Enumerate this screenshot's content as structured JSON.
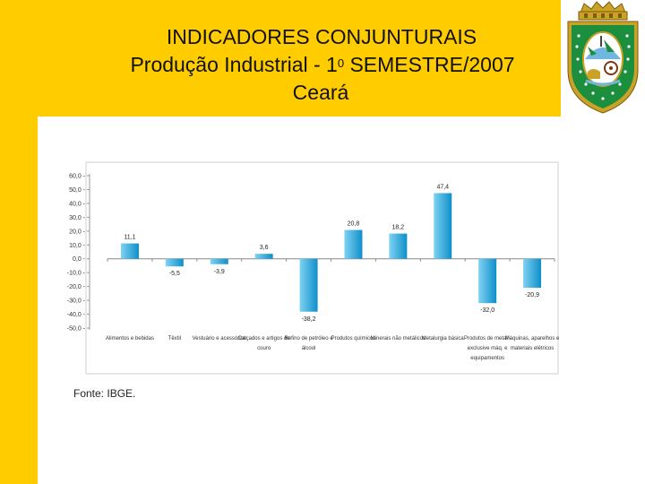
{
  "slide": {
    "title_line1": "INDICADORES CONJUNTURAIS",
    "title_line2_prefix": "Produção Industrial - 1",
    "title_line2_sup": "0",
    "title_line2_suffix": " SEMESTRE/2007",
    "title_line3": "Ceará",
    "source": "Fonte: IBGE."
  },
  "crest": {
    "name": "ceara-state-coat-of-arms",
    "colors": {
      "shield": "#1C8F3E",
      "gold": "#C9A227",
      "white": "#FFFFFF",
      "sky": "#6FB6E0"
    }
  },
  "colors": {
    "background": "#FFCC00",
    "panel": "#FFFFFF",
    "bar_dark": "#0E8FC9",
    "bar_light": "#7FD2F2"
  },
  "chart_data": {
    "type": "bar",
    "title": "",
    "xlabel": "",
    "ylabel": "",
    "ylim": [
      -50,
      60
    ],
    "yticks": [
      60,
      50,
      40,
      30,
      20,
      10,
      0,
      -10,
      -20,
      -30,
      -40,
      -50
    ],
    "ytick_labels": [
      "60,0",
      "50,0",
      "40,0",
      "30,0",
      "20,0",
      "10,0",
      "0,0",
      "-10,0",
      "-20,0",
      "-30,0",
      "-40,0",
      "-50,0"
    ],
    "categories": [
      [
        "Alimentos e bebidas"
      ],
      [
        "Têxtil"
      ],
      [
        "Vestuário e acessórios"
      ],
      [
        "Calçados e artigos de",
        "couro"
      ],
      [
        "Refino de petróleo e",
        "álcool"
      ],
      [
        "Produtos químicos"
      ],
      [
        "Minerais não metálicos"
      ],
      [
        "Metalurgia básica"
      ],
      [
        "Produtos de metal -",
        "exclusive máq. e",
        "equipamentos"
      ],
      [
        "Máquinas, aparelhos e",
        "materiais elétricos"
      ]
    ],
    "values": [
      11.1,
      -5.5,
      -3.9,
      3.6,
      -38.2,
      20.8,
      18.2,
      47.4,
      -32.0,
      -20.9
    ],
    "data_labels": [
      "11,1",
      "-5,5",
      "-3,9",
      "3,6",
      "-38,2",
      "20,8",
      "18,2",
      "47,4",
      "-32,0",
      "-20,9"
    ]
  }
}
